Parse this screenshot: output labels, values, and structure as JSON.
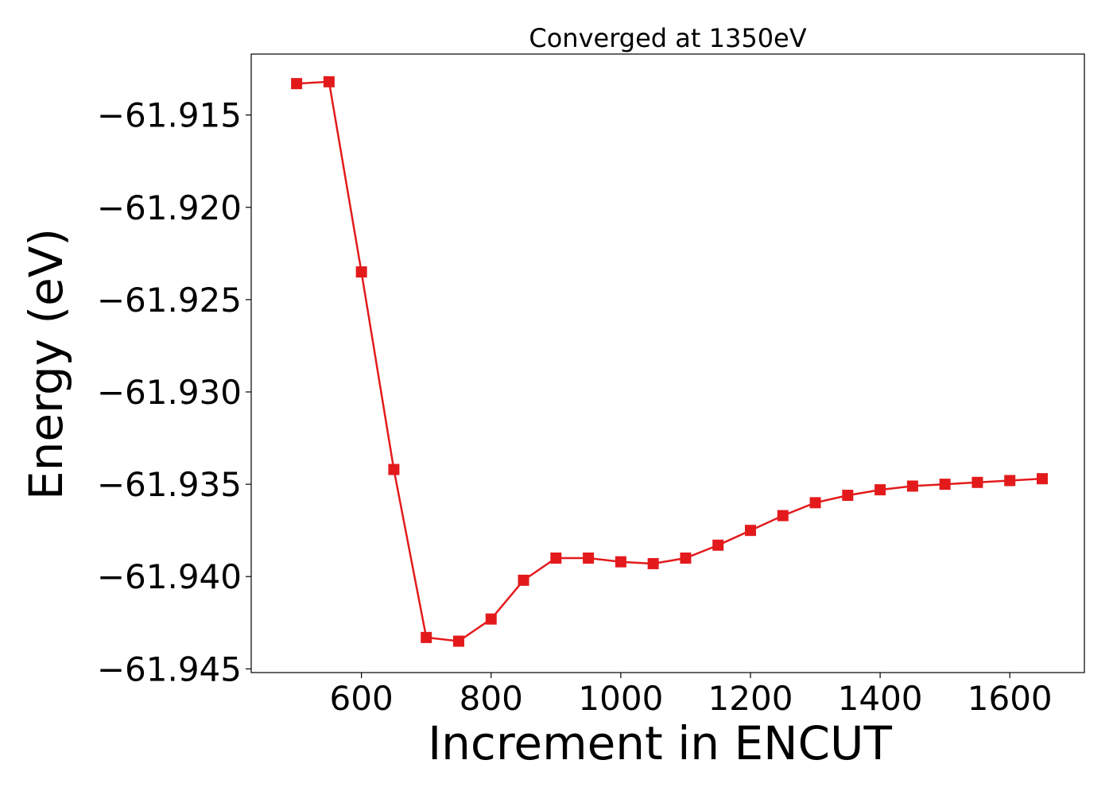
{
  "chart_data": {
    "type": "line",
    "title": "Converged at 1350eV",
    "xlabel": "Increment in ENCUT",
    "ylabel": "Energy (eV)",
    "xlim": [
      430,
      1715
    ],
    "ylim": [
      -61.9452,
      -61.9117
    ],
    "x_ticks": [
      600,
      800,
      1000,
      1200,
      1400,
      1600
    ],
    "x_tick_labels": [
      "600",
      "800",
      "1000",
      "1200",
      "1400",
      "1600"
    ],
    "y_ticks": [
      -61.915,
      -61.92,
      -61.925,
      -61.93,
      -61.935,
      -61.94,
      -61.945
    ],
    "y_tick_labels": [
      "−61.915",
      "−61.920",
      "−61.925",
      "−61.930",
      "−61.935",
      "−61.940",
      "−61.945"
    ],
    "grid": false,
    "marker": "square",
    "series_color": "#e31a1c",
    "series": [
      {
        "x": [
          500,
          550,
          600,
          650,
          700,
          750,
          800,
          850,
          900,
          950,
          1000,
          1050,
          1100,
          1150,
          1200,
          1250,
          1300,
          1350,
          1400,
          1450,
          1500,
          1550,
          1600,
          1650
        ],
        "y": [
          -61.9133,
          -61.9132,
          -61.9235,
          -61.9342,
          -61.9433,
          -61.9435,
          -61.9423,
          -61.9402,
          -61.939,
          -61.939,
          -61.9392,
          -61.9393,
          -61.939,
          -61.9383,
          -61.9375,
          -61.9367,
          -61.936,
          -61.9356,
          -61.9353,
          -61.9351,
          -61.935,
          -61.9349,
          -61.9348,
          -61.9347
        ]
      }
    ]
  }
}
